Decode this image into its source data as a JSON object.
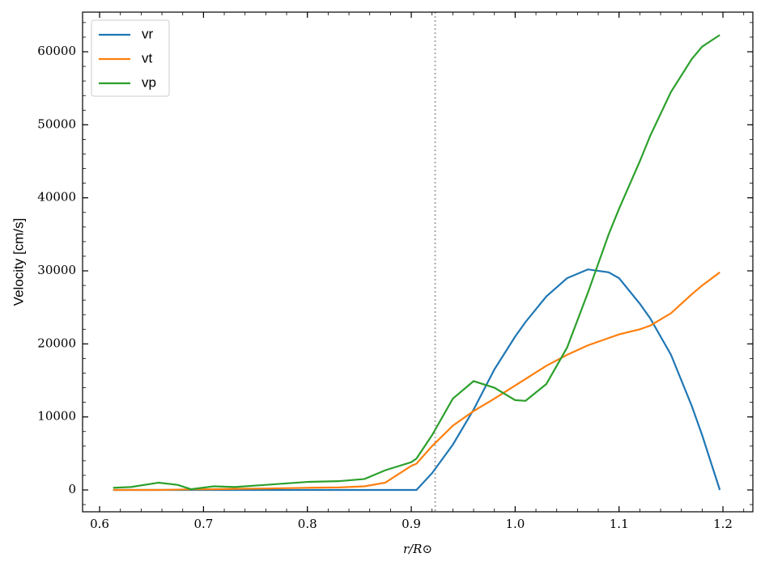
{
  "chart_data": {
    "type": "line",
    "x_label": "r/R⊙",
    "y_label": "Velocity [cm/s]",
    "x": [
      0.613,
      0.63,
      0.657,
      0.675,
      0.688,
      0.71,
      0.73,
      0.76,
      0.8,
      0.83,
      0.855,
      0.875,
      0.9,
      0.905,
      0.92,
      0.94,
      0.96,
      0.98,
      1.0,
      1.01,
      1.03,
      1.05,
      1.07,
      1.09,
      1.1,
      1.12,
      1.13,
      1.15,
      1.17,
      1.18,
      1.197
    ],
    "series": [
      {
        "name": "vr",
        "color": "#1f77b4",
        "values": [
          0,
          0,
          0,
          0,
          0,
          0,
          0,
          0,
          0,
          0,
          0,
          0,
          0,
          0,
          2300,
          6200,
          11000,
          16500,
          21000,
          23000,
          26500,
          29000,
          30200,
          29800,
          29000,
          25500,
          23500,
          18500,
          11500,
          7500,
          0
        ]
      },
      {
        "name": "vt",
        "color": "#ff7f0e",
        "values": [
          0,
          0,
          0,
          50,
          80,
          100,
          150,
          200,
          300,
          350,
          500,
          1000,
          3300,
          3600,
          6000,
          8800,
          10800,
          12500,
          14300,
          15200,
          17000,
          18500,
          19800,
          20800,
          21300,
          22000,
          22500,
          24200,
          26800,
          28000,
          29800
        ]
      },
      {
        "name": "vp",
        "color": "#2ca02c",
        "values": [
          300,
          400,
          1000,
          700,
          100,
          500,
          400,
          700,
          1100,
          1200,
          1500,
          2700,
          3800,
          4300,
          7500,
          12500,
          14900,
          14000,
          12300,
          12200,
          14500,
          19500,
          27000,
          35000,
          38500,
          45000,
          48500,
          54500,
          59000,
          60700,
          62300
        ]
      }
    ],
    "xlim": [
      0.5836,
      1.2288
    ],
    "ylim": [
      -2989,
      65425
    ],
    "xticks": [
      0.6,
      0.7,
      0.8,
      0.9,
      {
        "value": 1.0,
        "label": "1.0"
      },
      1.1,
      1.2
    ],
    "yticks": [
      0,
      10000,
      20000,
      30000,
      40000,
      50000,
      60000
    ],
    "vline": 0.923,
    "vline_color": "#aaaaaa",
    "legend": "upper left",
    "minor_ticks": true
  }
}
